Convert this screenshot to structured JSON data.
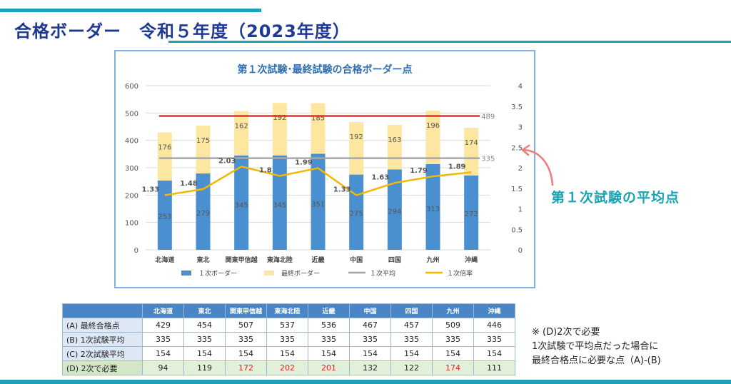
{
  "header": {
    "title": "合格ボーダー　令和５年度（2023年度）"
  },
  "callout": {
    "label": "第１次試験の平均点"
  },
  "note": {
    "line1": "※ (D)2次で必要",
    "line2": "1次試験で平均点だった場合に",
    "line3": "最終合格点に必要な点（A)-(B)"
  },
  "colors": {
    "bar1": "#4a8fd0",
    "bar2": "#fde6a0",
    "avg_line": "#a6a6a6",
    "ratio_line": "#f5b800",
    "border_line": "#e03030",
    "accent": "#1aa3b5"
  },
  "chart_data": {
    "type": "bar",
    "title": "第１次試験･最終試験の合格ボーダー点",
    "categories": [
      "北海道",
      "東北",
      "関東甲信越",
      "東海北陸",
      "近畿",
      "中国",
      "四国",
      "九州",
      "沖縄"
    ],
    "series": [
      {
        "name": "１次ボーダー",
        "type": "bar",
        "stack": "border",
        "values": [
          253,
          279,
          345,
          345,
          351,
          275,
          294,
          313,
          272
        ]
      },
      {
        "name": "最終ボーダー",
        "type": "bar",
        "stack": "border",
        "values": [
          176,
          175,
          162,
          192,
          185,
          192,
          163,
          196,
          174
        ]
      },
      {
        "name": "１次平均",
        "type": "line",
        "axis": "left",
        "values": [
          335,
          335,
          335,
          335,
          335,
          335,
          335,
          335,
          335
        ]
      },
      {
        "name": "１次倍率",
        "type": "line",
        "axis": "right",
        "values": [
          1.33,
          1.48,
          2.03,
          1.8,
          1.99,
          1.33,
          1.63,
          1.79,
          1.89
        ]
      }
    ],
    "reference_lines": [
      {
        "value": 489,
        "label": "489",
        "color": "red"
      },
      {
        "value": 335,
        "label": "335",
        "color": "gray"
      }
    ],
    "ylim": [
      0,
      600
    ],
    "yticks": [
      "0",
      "100",
      "200",
      "300",
      "400",
      "500",
      "600"
    ],
    "y2lim": [
      0,
      4
    ],
    "y2ticks": [
      "0",
      "0.5",
      "1",
      "1.5",
      "2",
      "2.5",
      "3",
      "3.5",
      "4"
    ],
    "grid": true,
    "legend": "bottom"
  },
  "table": {
    "columns": [
      "北海道",
      "東北",
      "関東甲信越",
      "東海北陸",
      "近畿",
      "中国",
      "四国",
      "九州",
      "沖縄"
    ],
    "rows": [
      {
        "label": "(A) 最終合格点",
        "values": [
          "429",
          "454",
          "507",
          "537",
          "536",
          "467",
          "457",
          "509",
          "446"
        ]
      },
      {
        "label": "(B) 1次試験平均",
        "values": [
          "335",
          "335",
          "335",
          "335",
          "335",
          "335",
          "335",
          "335",
          "335"
        ]
      },
      {
        "label": "(C) 2次試験平均",
        "values": [
          "154",
          "154",
          "154",
          "154",
          "154",
          "154",
          "154",
          "154",
          "154"
        ]
      },
      {
        "label": "(D) 2次で必要",
        "values": [
          "94",
          "119",
          "172",
          "202",
          "201",
          "132",
          "122",
          "174",
          "111"
        ]
      }
    ]
  }
}
